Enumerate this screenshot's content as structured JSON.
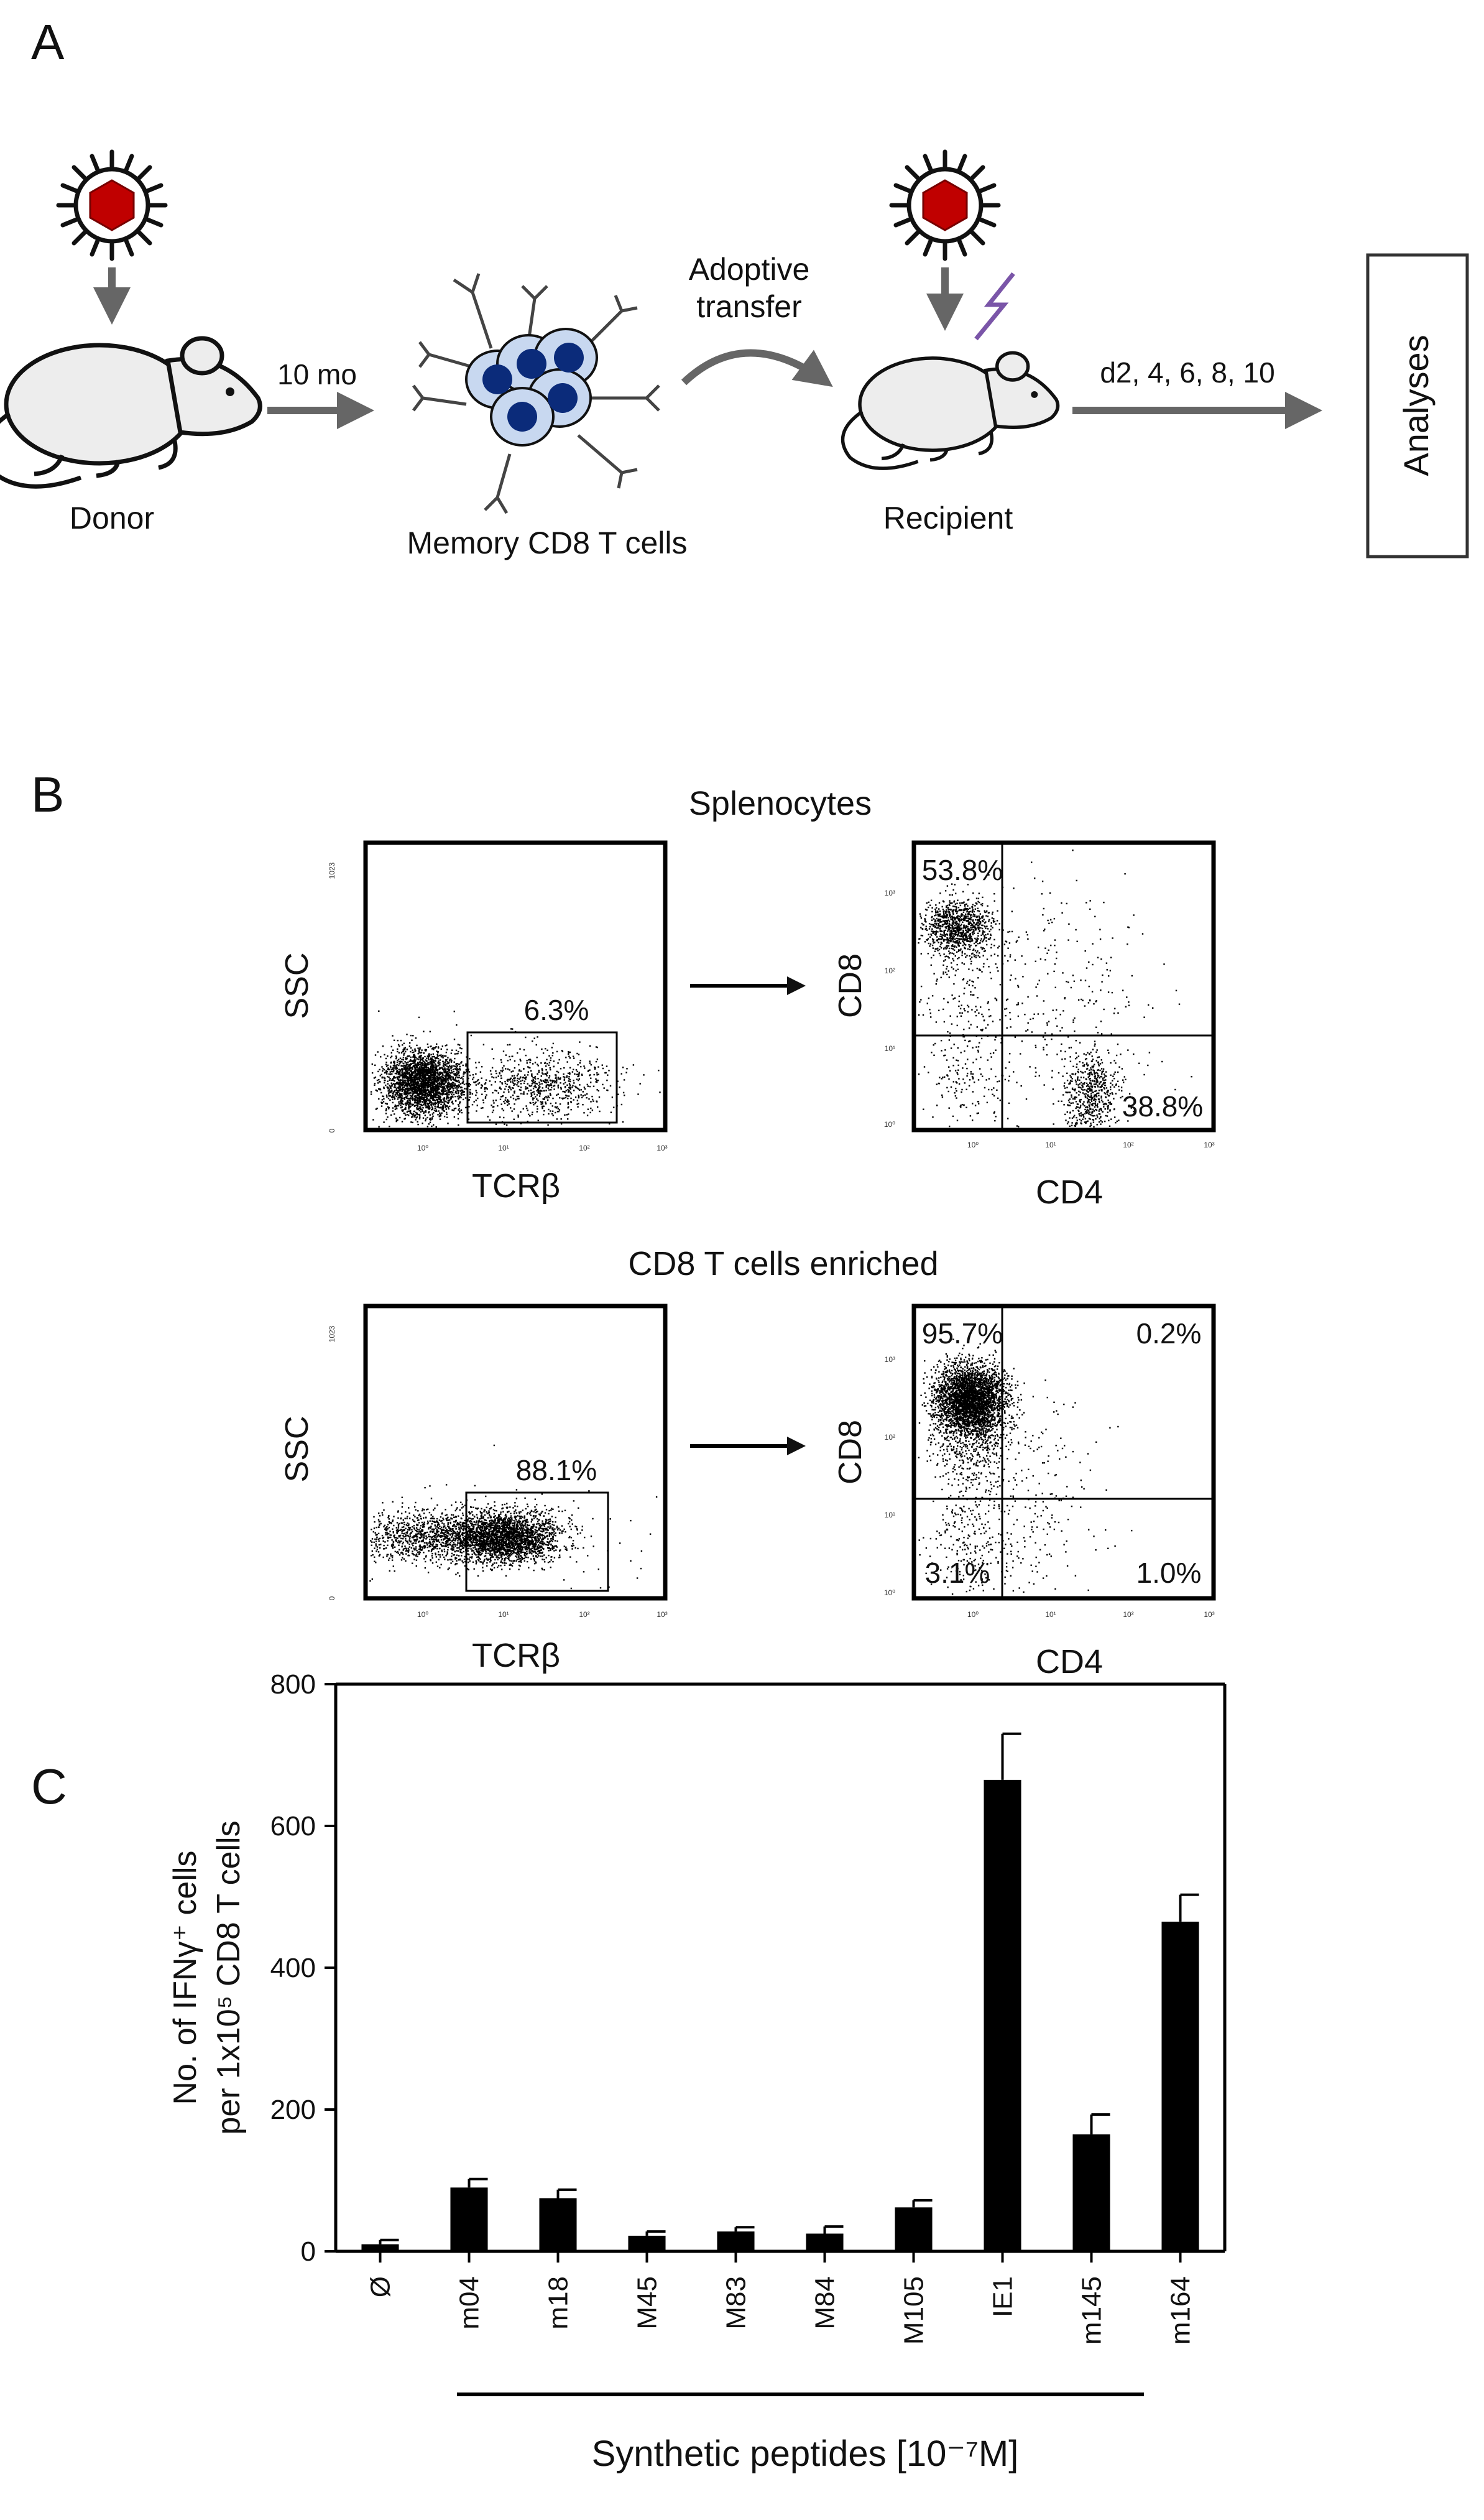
{
  "panels": {
    "A": {
      "letter": "A",
      "donor_label": "Donor",
      "time_label": "10 mo",
      "memory_label": "Memory CD8 T cells",
      "transfer_label_line1": "Adoptive",
      "transfer_label_line2": "transfer",
      "recipient_label": "Recipient",
      "days_label": "d2, 4, 6, 8, 10",
      "analyses_label": "Analyses"
    },
    "B": {
      "letter": "B",
      "top_title": "Splenocytes",
      "bottom_title": "CD8 T cells enriched",
      "ssc_label": "SSC",
      "tcrb_label": "TCRβ",
      "cd8_label": "CD8",
      "cd4_label": "CD4",
      "ssc_top_tick": "1023",
      "ssc_zero_tick": "0",
      "decade_ticks": [
        "10⁰",
        "10¹",
        "10²",
        "10³"
      ],
      "top_gate_pct": "6.3%",
      "top_q_ul": "53.8%",
      "top_q_lr": "38.8%",
      "bottom_gate_pct": "88.1%",
      "bottom_q_ul": "95.7%",
      "bottom_q_ur": "0.2%",
      "bottom_q_ll": "3.1%",
      "bottom_q_lr": "1.0%"
    },
    "C": {
      "letter": "C",
      "ylabel_line1": "No. of IFNγ⁺ cells",
      "ylabel_line2": "per 1x10⁵ CD8 T cells",
      "xlabel": "Synthetic peptides [10⁻⁷M]"
    }
  },
  "colors": {
    "virus_red": "#c00000",
    "cell_fill": "#c8d8f0",
    "cell_nucleus": "#0b2b7a",
    "arrow_gray": "#666666",
    "lightning_purple": "#7a55a8",
    "bar_black": "#000000"
  },
  "icons": [
    "virus-icon",
    "mouse-icon",
    "t-cell-cluster-icon",
    "lightning-icon"
  ],
  "chart_data": {
    "type": "bar",
    "categories": [
      "Ø",
      "m04",
      "m18",
      "M45",
      "M83",
      "M84",
      "M105",
      "IE1",
      "m145",
      "m164"
    ],
    "values": [
      10,
      90,
      75,
      22,
      28,
      25,
      62,
      665,
      165,
      465
    ],
    "errors": [
      6,
      12,
      12,
      6,
      6,
      10,
      10,
      65,
      28,
      38
    ],
    "ylim": [
      0,
      800
    ],
    "yticks": [
      0,
      200,
      400,
      600,
      800
    ],
    "grid": false
  }
}
